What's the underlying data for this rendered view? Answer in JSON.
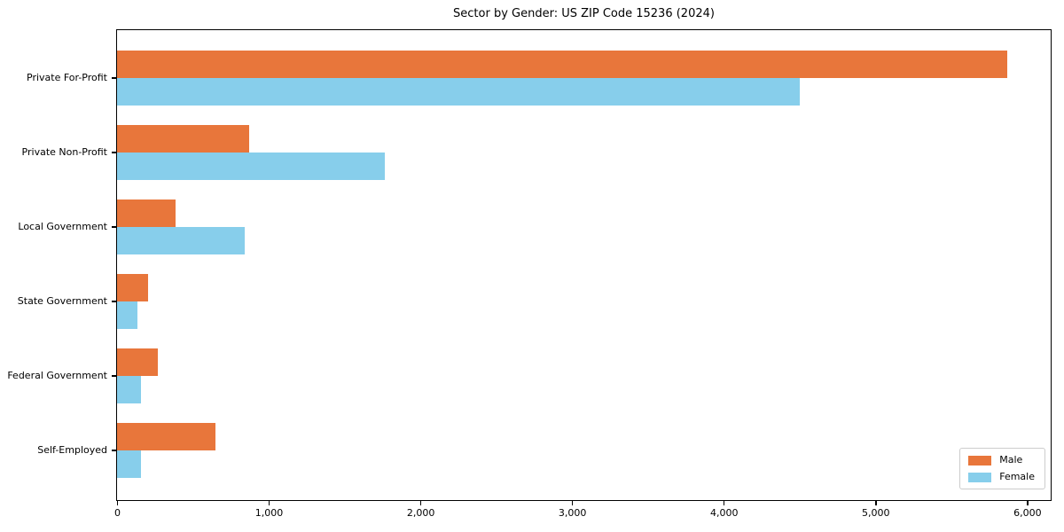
{
  "title": "Sector by Gender: US ZIP Code 15236 (2024)",
  "chart_data": {
    "type": "bar",
    "orientation": "horizontal",
    "title": "Sector by Gender: US ZIP Code 15236 (2024)",
    "categories": [
      "Private For-Profit",
      "Private Non-Profit",
      "Local Government",
      "State Government",
      "Federal Government",
      "Self-Employed"
    ],
    "series": [
      {
        "name": "Male",
        "color": "#E8763B",
        "values": [
          5870,
          870,
          385,
          205,
          270,
          650
        ]
      },
      {
        "name": "Female",
        "color": "#87CEEB",
        "values": [
          4500,
          1765,
          840,
          135,
          160,
          155
        ]
      }
    ],
    "xlabel": "",
    "ylabel": "",
    "xlim": [
      0,
      6150
    ],
    "x_ticks": [
      0,
      1000,
      2000,
      3000,
      4000,
      5000,
      6000
    ],
    "x_tick_labels": [
      "0",
      "1,000",
      "2,000",
      "3,000",
      "4,000",
      "5,000",
      "6,000"
    ],
    "grid": false,
    "legend": {
      "position": "lower right"
    }
  }
}
